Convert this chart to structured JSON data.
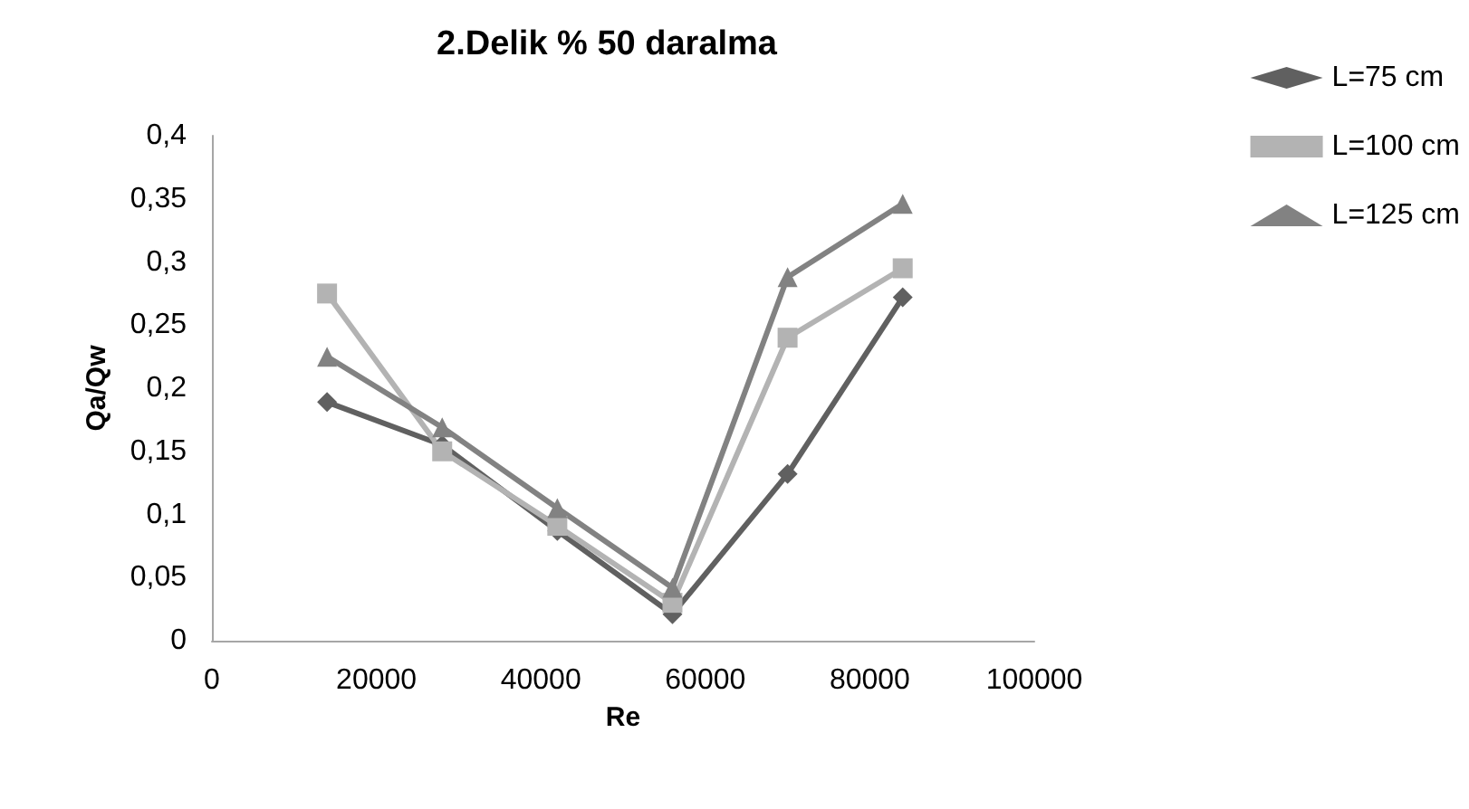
{
  "chart_data": {
    "type": "line",
    "title": "2.Delik % 50 daralma",
    "xlabel": "Re",
    "ylabel": "Qa/Qw",
    "x": [
      14000,
      28000,
      42000,
      56000,
      70000,
      84000
    ],
    "series": [
      {
        "name": "L=75 cm",
        "color": "#606060",
        "marker": "diamond",
        "values": [
          0.189,
          0.155,
          0.087,
          0.021,
          0.132,
          0.272
        ]
      },
      {
        "name": "L=100 cm",
        "color": "#b3b3b3",
        "marker": "square",
        "values": [
          0.275,
          0.15,
          0.091,
          0.03,
          0.24,
          0.295
        ]
      },
      {
        "name": "L=125 cm",
        "color": "#828282",
        "marker": "triangle",
        "values": [
          0.225,
          0.169,
          0.105,
          0.042,
          0.288,
          0.346
        ]
      }
    ],
    "xlim": [
      0,
      100000
    ],
    "xticks": [
      0,
      20000,
      40000,
      60000,
      80000,
      100000
    ],
    "ylim": [
      0,
      0.4
    ],
    "yticks": [
      {
        "value": 0,
        "label": "0"
      },
      {
        "value": 0.05,
        "label": "0,05"
      },
      {
        "value": 0.1,
        "label": "0,1"
      },
      {
        "value": 0.15,
        "label": "0,15"
      },
      {
        "value": 0.2,
        "label": "0,2"
      },
      {
        "value": 0.25,
        "label": "0,25"
      },
      {
        "value": 0.3,
        "label": "0,3"
      },
      {
        "value": 0.35,
        "label": "0,35"
      },
      {
        "value": 0.4,
        "label": "0,4"
      }
    ],
    "grid": false,
    "legend": "right",
    "line_style": "solid"
  }
}
